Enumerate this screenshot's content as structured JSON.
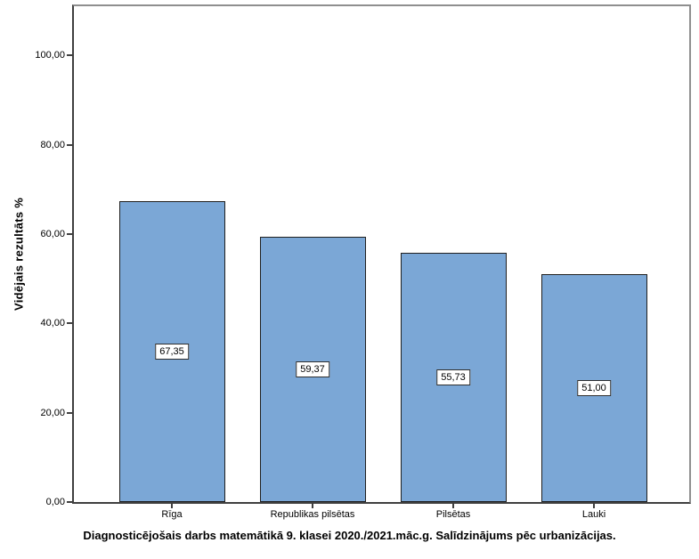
{
  "chart_data": {
    "type": "bar",
    "title": "Diagnosticējošais darbs matemātikā 9. klasei 2020./2021.māc.g. Salīdzinājums pēc urbanizācijas.",
    "ylabel": "Vidējais rezultāts %",
    "xlabel": "",
    "categories": [
      "Rīga",
      "Republikas pilsētas",
      "Pilsētas",
      "Lauki"
    ],
    "values": [
      67.35,
      59.37,
      55.73,
      51.0
    ],
    "value_labels": [
      "67,35",
      "59,37",
      "55,73",
      "51,00"
    ],
    "ylim": [
      0,
      111
    ],
    "yticks": [
      0,
      20,
      40,
      60,
      80,
      100
    ],
    "ytick_labels": [
      "0,00",
      "20,00",
      "40,00",
      "60,00",
      "80,00",
      "100,00"
    ],
    "grid": false,
    "legend": "none",
    "colors": {
      "bar_fill": "#7BA7D6",
      "bar_border": "#1f1f1f",
      "axis_dark": "#3f3f3f",
      "axis_light": "#8f8f8f",
      "text": "#000000",
      "background": "#ffffff"
    }
  }
}
